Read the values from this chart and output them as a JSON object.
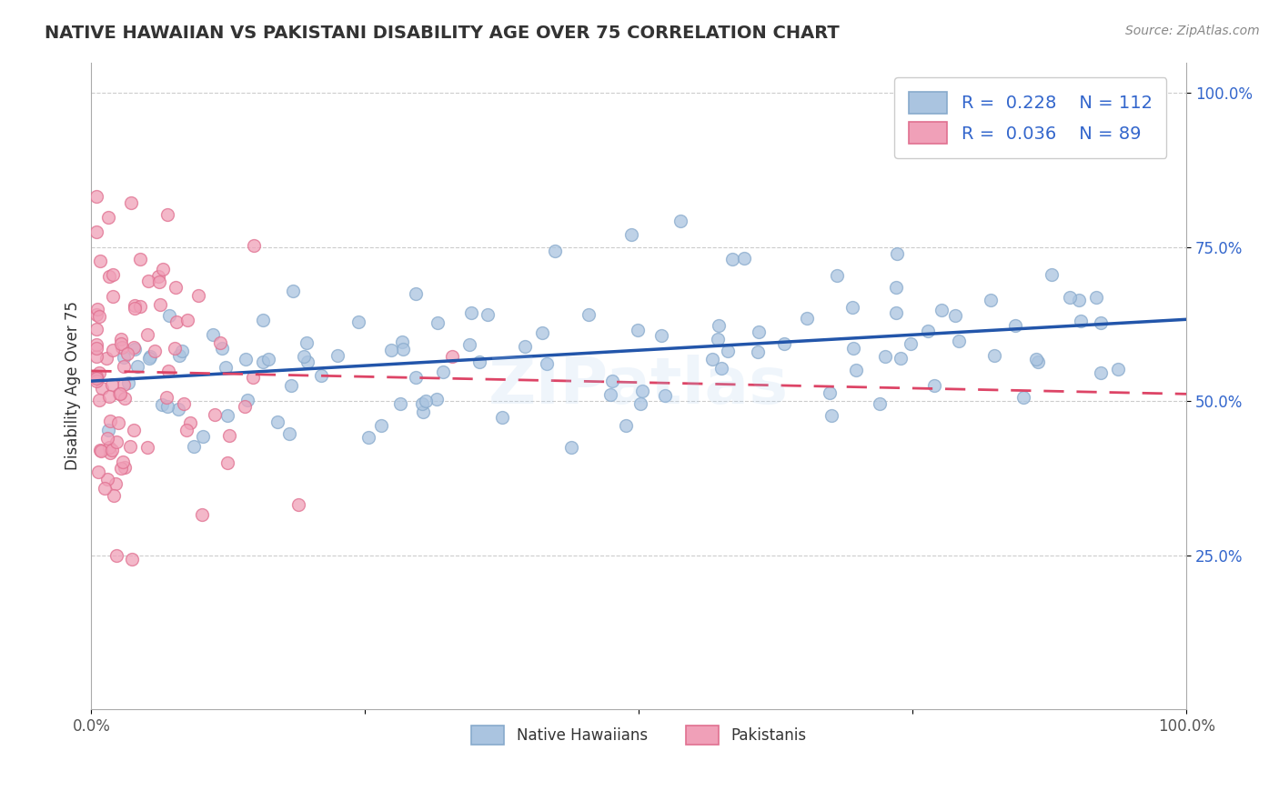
{
  "title": "NATIVE HAWAIIAN VS PAKISTANI DISABILITY AGE OVER 75 CORRELATION CHART",
  "source": "Source: ZipAtlas.com",
  "ylabel": "Disability Age Over 75",
  "blue_color": "#aac4e0",
  "pink_color": "#f0a0b8",
  "blue_edge_color": "#88aacc",
  "pink_edge_color": "#e07090",
  "blue_line_color": "#2255aa",
  "pink_line_color": "#dd4466",
  "grid_color": "#cccccc",
  "background_color": "#ffffff",
  "watermark": "ZIPatlas",
  "title_color": "#333333",
  "legend_text_color": "#3366cc",
  "axis_label_color": "#3366cc",
  "R_blue": 0.228,
  "N_blue": 112,
  "R_pink": 0.036,
  "N_pink": 89,
  "xlim": [
    0.0,
    1.0
  ],
  "ylim": [
    0.0,
    1.05
  ],
  "yticks": [
    0.25,
    0.5,
    0.75,
    1.0
  ],
  "ytick_labels": [
    "25.0%",
    "50.0%",
    "75.0%",
    "100.0%"
  ]
}
